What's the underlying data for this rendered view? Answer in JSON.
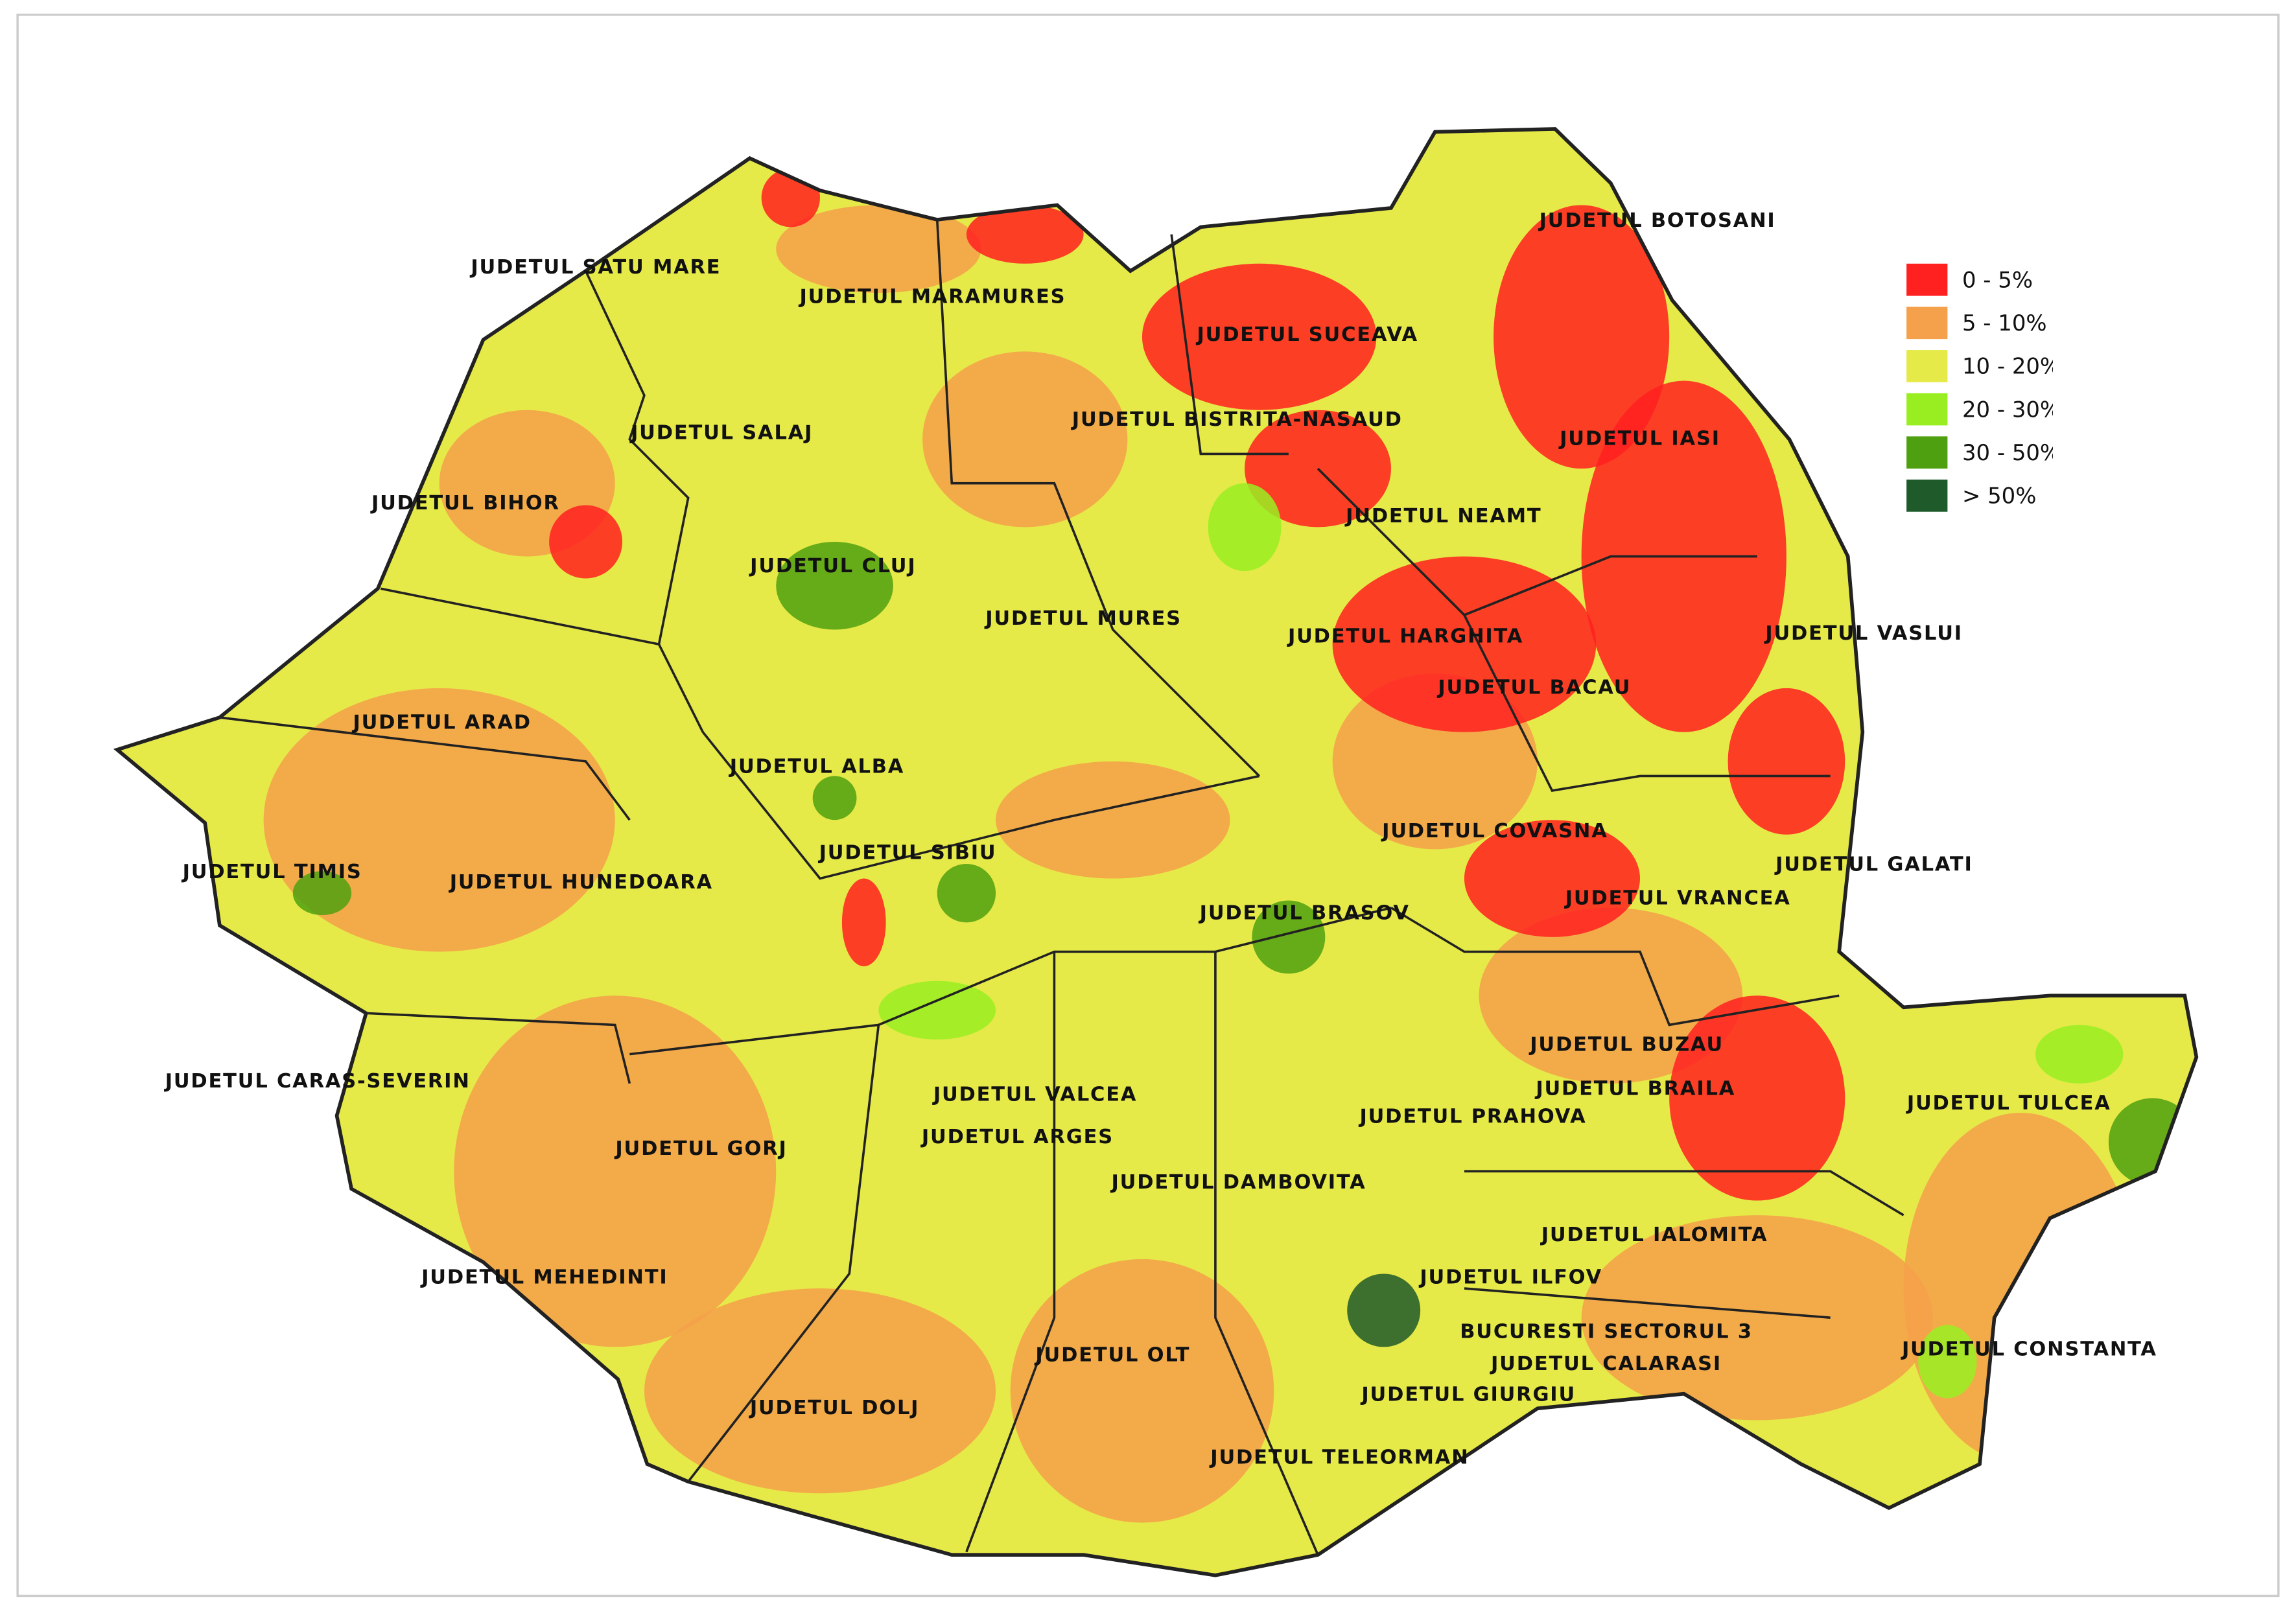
{
  "map": {
    "counties": [
      "JUDETUL SATU MARE",
      "JUDETUL MARAMURES",
      "JUDETUL BOTOSANI",
      "JUDETUL SUCEAVA",
      "JUDETUL BISTRITA-NASAUD",
      "JUDETUL SALAJ",
      "JUDETUL IASI",
      "JUDETUL BIHOR",
      "JUDETUL NEAMT",
      "JUDETUL CLUJ",
      "JUDETUL MURES",
      "JUDETUL HARGHITA",
      "JUDETUL VASLUI",
      "JUDETUL BACAU",
      "JUDETUL ARAD",
      "JUDETUL ALBA",
      "JUDETUL COVASNA",
      "JUDETUL GALATI",
      "JUDETUL SIBIU",
      "JUDETUL TIMIS",
      "JUDETUL HUNEDOARA",
      "JUDETUL VRANCEA",
      "JUDETUL BRASOV",
      "JUDETUL BUZAU",
      "JUDETUL BRAILA",
      "JUDETUL TULCEA",
      "JUDETUL CARAS-SEVERIN",
      "JUDETUL VALCEA",
      "JUDETUL ARGES",
      "JUDETUL PRAHOVA",
      "JUDETUL GORJ",
      "JUDETUL DAMBOVITA",
      "JUDETUL IALOMITA",
      "JUDETUL MEHEDINTI",
      "JUDETUL ILFOV",
      "BUCURESTI SECTORUL 3",
      "JUDETUL CALARASI",
      "JUDETUL CONSTANTA",
      "JUDETUL OLT",
      "JUDETUL GIURGIU",
      "JUDETUL DOLJ",
      "JUDETUL TELEORMAN"
    ],
    "legend": [
      {
        "label": "0 - 5%",
        "color": "#ff2020"
      },
      {
        "label": "5 - 10%",
        "color": "#f5a04a"
      },
      {
        "label": "10 - 20%",
        "color": "#e6ea48"
      },
      {
        "label": "20 - 30%",
        "color": "#99ee22"
      },
      {
        "label": "30 - 50%",
        "color": "#4fa010"
      },
      {
        "label": "> 50%",
        "color": "#1f5a2a"
      }
    ]
  }
}
